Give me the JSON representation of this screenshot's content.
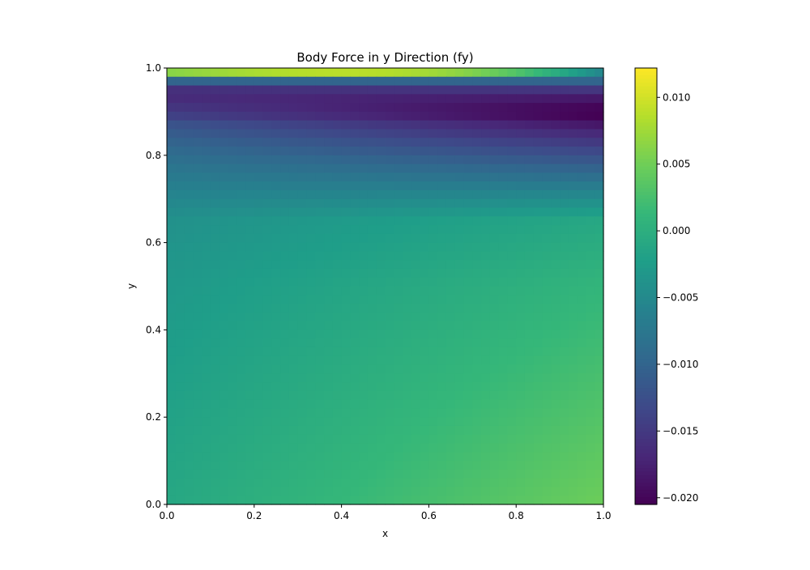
{
  "chart_data": {
    "type": "heatmap",
    "title": "Body Force in y Direction (fy)",
    "xlabel": "x",
    "ylabel": "y",
    "xlim": [
      0.0,
      1.0
    ],
    "ylim": [
      0.0,
      1.0
    ],
    "x_ticks": [
      "0.0",
      "0.2",
      "0.4",
      "0.6",
      "0.8",
      "1.0"
    ],
    "y_ticks": [
      "0.0",
      "0.2",
      "0.4",
      "0.6",
      "0.8",
      "1.0"
    ],
    "colormap": "viridis",
    "colorbar": {
      "vmin": -0.0205,
      "vmax": 0.0122,
      "ticks": [
        0.01,
        0.005,
        0.0,
        -0.005,
        -0.01,
        -0.015,
        -0.02
      ],
      "tick_labels": [
        "0.010",
        "0.005",
        "0.000",
        "−0.005",
        "−0.010",
        "−0.015",
        "−0.020"
      ]
    },
    "grid": {
      "nx": 50,
      "ny": 50
    },
    "y_profile": {
      "y": [
        0.0,
        0.5,
        0.65,
        0.72,
        0.78,
        0.83,
        0.87,
        0.89,
        0.92,
        0.945,
        0.96,
        0.975,
        0.985,
        1.0
      ],
      "value_at_x0": [
        -0.001,
        -0.003,
        -0.004,
        -0.006,
        -0.008,
        -0.01,
        -0.012,
        -0.014,
        -0.016,
        -0.017,
        -0.014,
        -0.008,
        0.004,
        0.005
      ],
      "value_at_x1": [
        0.0048,
        0.001,
        -0.001,
        -0.006,
        -0.011,
        -0.015,
        -0.0185,
        -0.0205,
        -0.02,
        -0.016,
        -0.014,
        -0.008,
        -0.006,
        -0.005
      ]
    },
    "top_row_peak": {
      "x": 0.45,
      "value": 0.0122
    }
  }
}
